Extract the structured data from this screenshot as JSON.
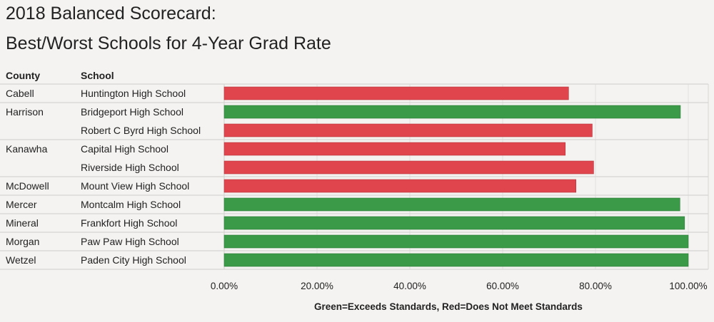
{
  "title_line1": "2018 Balanced Scorecard:",
  "title_line2": "Best/Worst Schools for 4-Year Grad Rate",
  "headers": {
    "county": "County",
    "school": "School"
  },
  "legend_note": "Green=Exceeds Standards, Red=Does Not Meet Standards",
  "colors": {
    "exceeds": "#3a9a48",
    "not_meet": "#e0454d"
  },
  "chart_data": {
    "type": "bar",
    "orientation": "horizontal",
    "title": "2018 Balanced Scorecard: Best/Worst Schools for 4-Year Grad Rate",
    "xlabel": "",
    "ylabel": "",
    "xlim": [
      0,
      1
    ],
    "xticks": [
      "0.00%",
      "20.00%",
      "40.00%",
      "60.00%",
      "80.00%",
      "100.00%"
    ],
    "county_groups": [
      {
        "county": "Cabell",
        "rows": 1
      },
      {
        "county": "Harrison",
        "rows": 2
      },
      {
        "county": "Kanawha",
        "rows": 2
      },
      {
        "county": "McDowell",
        "rows": 1
      },
      {
        "county": "Mercer",
        "rows": 1
      },
      {
        "county": "Mineral",
        "rows": 1
      },
      {
        "county": "Morgan",
        "rows": 1
      },
      {
        "county": "Wetzel",
        "rows": 1
      }
    ],
    "categories": [
      "Huntington High School",
      "Bridgeport High School",
      "Robert C Byrd High School",
      "Capital High School",
      "Riverside High School",
      "Mount View High School",
      "Montcalm High School",
      "Frankfort High School",
      "Paw Paw High School",
      "Paden City High School"
    ],
    "values": [
      0.742,
      0.983,
      0.793,
      0.735,
      0.796,
      0.758,
      0.982,
      0.992,
      1.0,
      1.0
    ],
    "status": [
      "not_meet",
      "exceeds",
      "not_meet",
      "not_meet",
      "not_meet",
      "not_meet",
      "exceeds",
      "exceeds",
      "exceeds",
      "exceeds"
    ],
    "legend": "Green=Exceeds Standards, Red=Does Not Meet Standards"
  }
}
